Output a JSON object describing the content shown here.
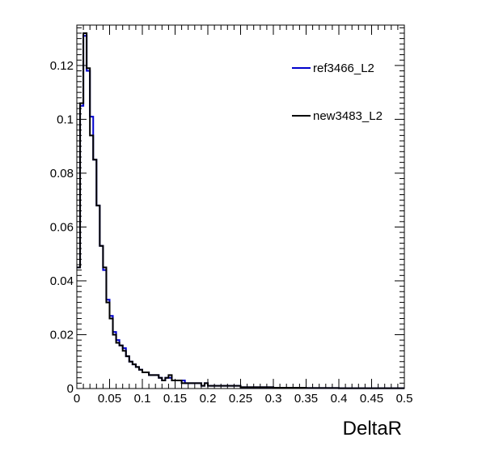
{
  "chart_data": {
    "type": "line",
    "style": "step-histogram",
    "title": "",
    "xlabel": "DeltaR",
    "ylabel": "",
    "xlim": [
      0,
      0.5
    ],
    "ylim": [
      0,
      0.135
    ],
    "x_ticks": [
      "0",
      "0.05",
      "0.1",
      "0.15",
      "0.2",
      "0.25",
      "0.3",
      "0.35",
      "0.4",
      "0.45",
      "0.5"
    ],
    "y_ticks": [
      "0",
      "0.02",
      "0.04",
      "0.06",
      "0.08",
      "0.1",
      "0.12"
    ],
    "legend_position": "top-right",
    "bin_width": 0.005,
    "series": [
      {
        "name": "ref3466_L2",
        "color": "#0000cc",
        "values": [
          0.045,
          0.105,
          0.131,
          0.118,
          0.101,
          0.085,
          0.068,
          0.053,
          0.044,
          0.033,
          0.027,
          0.021,
          0.018,
          0.016,
          0.015,
          0.012,
          0.01,
          0.009,
          0.008,
          0.007,
          0.006,
          0.006,
          0.005,
          0.005,
          0.005,
          0.004,
          0.003,
          0.004,
          0.004,
          0.003,
          0.003,
          0.003,
          0.003,
          0.002,
          0.002,
          0.002,
          0.002,
          0.002,
          0.001,
          0.002,
          0.001,
          0.001,
          0.001,
          0.001,
          0.001,
          0.001,
          0.001,
          0.001,
          0.001,
          0.001,
          0.0005,
          0.0005,
          0.0005,
          0.0005,
          0.0005,
          0.0005,
          0.0005,
          0.0005,
          0.0005,
          0.0005,
          0.0003,
          0.0003,
          0.0003,
          0.0003,
          0.0003,
          0.0003,
          0.0003,
          0.0003,
          0.0003,
          0.0003,
          0.0002,
          0.0002,
          0.0002,
          0.0002,
          0.0002,
          0.0002,
          0.0002,
          0.0002,
          0.0002,
          0.0002,
          0.0001,
          0.0001,
          0.0001,
          0.0001,
          0.0001,
          0.0001,
          0.0001,
          0.0001,
          0.0001,
          0.0001,
          0.0001,
          0.0001,
          0.0001,
          0.0001,
          0.0001,
          0.0001,
          0.0001,
          0.0001,
          0.0001,
          0.0001
        ]
      },
      {
        "name": "new3483_L2",
        "color": "#000000",
        "values": [
          0.045,
          0.106,
          0.132,
          0.119,
          0.094,
          0.085,
          0.068,
          0.053,
          0.045,
          0.032,
          0.026,
          0.02,
          0.017,
          0.016,
          0.014,
          0.012,
          0.01,
          0.009,
          0.008,
          0.007,
          0.006,
          0.006,
          0.005,
          0.005,
          0.005,
          0.004,
          0.003,
          0.004,
          0.005,
          0.003,
          0.003,
          0.003,
          0.002,
          0.002,
          0.002,
          0.002,
          0.002,
          0.002,
          0.001,
          0.002,
          0.001,
          0.001,
          0.001,
          0.001,
          0.001,
          0.001,
          0.001,
          0.001,
          0.001,
          0.001,
          0.0005,
          0.0005,
          0.0005,
          0.0005,
          0.0005,
          0.0005,
          0.0005,
          0.0005,
          0.0005,
          0.0005,
          0.0003,
          0.0003,
          0.0003,
          0.0003,
          0.0003,
          0.0003,
          0.0003,
          0.0003,
          0.0003,
          0.0003,
          0.0002,
          0.0002,
          0.0002,
          0.0002,
          0.0002,
          0.0002,
          0.0002,
          0.0002,
          0.0002,
          0.0002,
          0.0001,
          0.0001,
          0.0001,
          0.0001,
          0.0001,
          0.0001,
          0.0001,
          0.0001,
          0.0001,
          0.0001,
          0.0001,
          0.0001,
          0.0001,
          0.0001,
          0.0001,
          0.0001,
          0.0001,
          0.0001,
          0.0001,
          0.0001
        ]
      }
    ]
  }
}
